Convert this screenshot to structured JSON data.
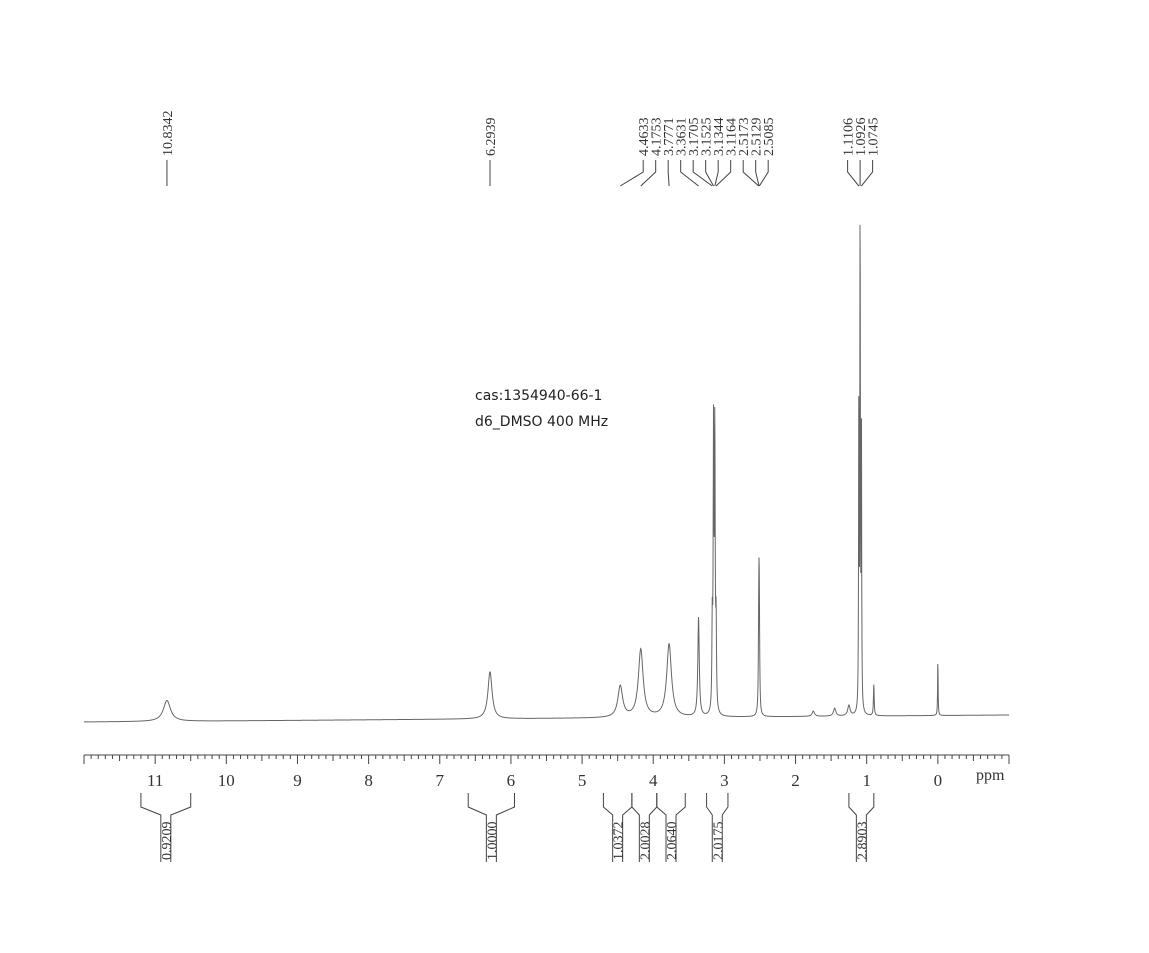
{
  "sample": {
    "cas": "cas:1354940-66-1",
    "conditions": "d6_DMSO  400 MHz"
  },
  "chart_data": {
    "type": "line",
    "title": "",
    "xlabel": "ppm",
    "ylabel": "",
    "x_reversed": true,
    "xlim": [
      -1.0,
      12.0
    ],
    "ticks": [
      "11",
      "10",
      "9",
      "8",
      "7",
      "6",
      "5",
      "4",
      "3",
      "2",
      "1",
      "0"
    ],
    "tick_values": [
      11,
      10,
      9,
      8,
      7,
      6,
      5,
      4,
      3,
      2,
      1,
      0
    ],
    "peaks": [
      {
        "shift": 10.8342,
        "height": 0.04,
        "width": 0.06
      },
      {
        "shift": 6.2939,
        "height": 0.09,
        "width": 0.035
      },
      {
        "shift": 4.4633,
        "height": 0.06,
        "width": 0.04
      },
      {
        "shift": 4.1753,
        "height": 0.13,
        "width": 0.04
      },
      {
        "shift": 3.7771,
        "height": 0.14,
        "width": 0.04
      },
      {
        "shift": 3.3631,
        "height": 0.19,
        "width": 0.012
      },
      {
        "shift": 3.1705,
        "height": 0.16,
        "width": 0.006
      },
      {
        "shift": 3.1525,
        "height": 0.53,
        "width": 0.006
      },
      {
        "shift": 3.1344,
        "height": 0.53,
        "width": 0.006
      },
      {
        "shift": 3.1164,
        "height": 0.16,
        "width": 0.006
      },
      {
        "shift": 2.5173,
        "height": 0.12,
        "width": 0.006
      },
      {
        "shift": 2.5129,
        "height": 0.15,
        "width": 0.006
      },
      {
        "shift": 2.5085,
        "height": 0.12,
        "width": 0.006
      },
      {
        "shift": 1.1106,
        "height": 0.6,
        "width": 0.004
      },
      {
        "shift": 1.0926,
        "height": 1.0,
        "width": 0.004
      },
      {
        "shift": 1.0745,
        "height": 0.6,
        "width": 0.004
      },
      {
        "shift": 0.9,
        "height": 0.06,
        "width": 0.006
      },
      {
        "shift": 1.25,
        "height": 0.02,
        "width": 0.02
      },
      {
        "shift": 1.45,
        "height": 0.015,
        "width": 0.02
      },
      {
        "shift": 1.75,
        "height": 0.01,
        "width": 0.02
      },
      {
        "shift": 0.0,
        "height": 0.11,
        "width": 0.004
      }
    ],
    "peak_labels": [
      {
        "group": "g1",
        "label": "10.8342",
        "shift": 10.8342
      },
      {
        "group": "g2",
        "label": "6.2939",
        "shift": 6.2939
      },
      {
        "group": "g3",
        "label": "4.4633",
        "shift": 4.4633
      },
      {
        "group": "g3",
        "label": "4.1753",
        "shift": 4.1753
      },
      {
        "group": "g3",
        "label": "3.7771",
        "shift": 3.7771
      },
      {
        "group": "g3",
        "label": "3.3631",
        "shift": 3.3631
      },
      {
        "group": "g3",
        "label": "3.1705",
        "shift": 3.1705
      },
      {
        "group": "g3",
        "label": "3.1525",
        "shift": 3.1525
      },
      {
        "group": "g3",
        "label": "3.1344",
        "shift": 3.1344
      },
      {
        "group": "g3",
        "label": "3.1164",
        "shift": 3.1164
      },
      {
        "group": "g3",
        "label": "2.5173",
        "shift": 2.5173
      },
      {
        "group": "g3",
        "label": "2.5129",
        "shift": 2.5129
      },
      {
        "group": "g3",
        "label": "2.5085",
        "shift": 2.5085
      },
      {
        "group": "g4",
        "label": "1.1106",
        "shift": 1.1106
      },
      {
        "group": "g4",
        "label": "1.0926",
        "shift": 1.0926
      },
      {
        "group": "g4",
        "label": "1.0745",
        "shift": 1.0745
      }
    ],
    "integrals": [
      {
        "from": 11.2,
        "to": 10.5,
        "value": "0.9209"
      },
      {
        "from": 6.6,
        "to": 5.95,
        "value": "1.0000"
      },
      {
        "from": 4.7,
        "to": 4.3,
        "value": "1.0372"
      },
      {
        "from": 4.3,
        "to": 3.95,
        "value": "2.0028"
      },
      {
        "from": 3.95,
        "to": 3.55,
        "value": "2.0640"
      },
      {
        "from": 3.25,
        "to": 2.95,
        "value": "2.0175"
      },
      {
        "from": 1.25,
        "to": 0.9,
        "value": "2.8903"
      }
    ],
    "colors": {
      "line": "#666666",
      "text": "#333333"
    }
  }
}
